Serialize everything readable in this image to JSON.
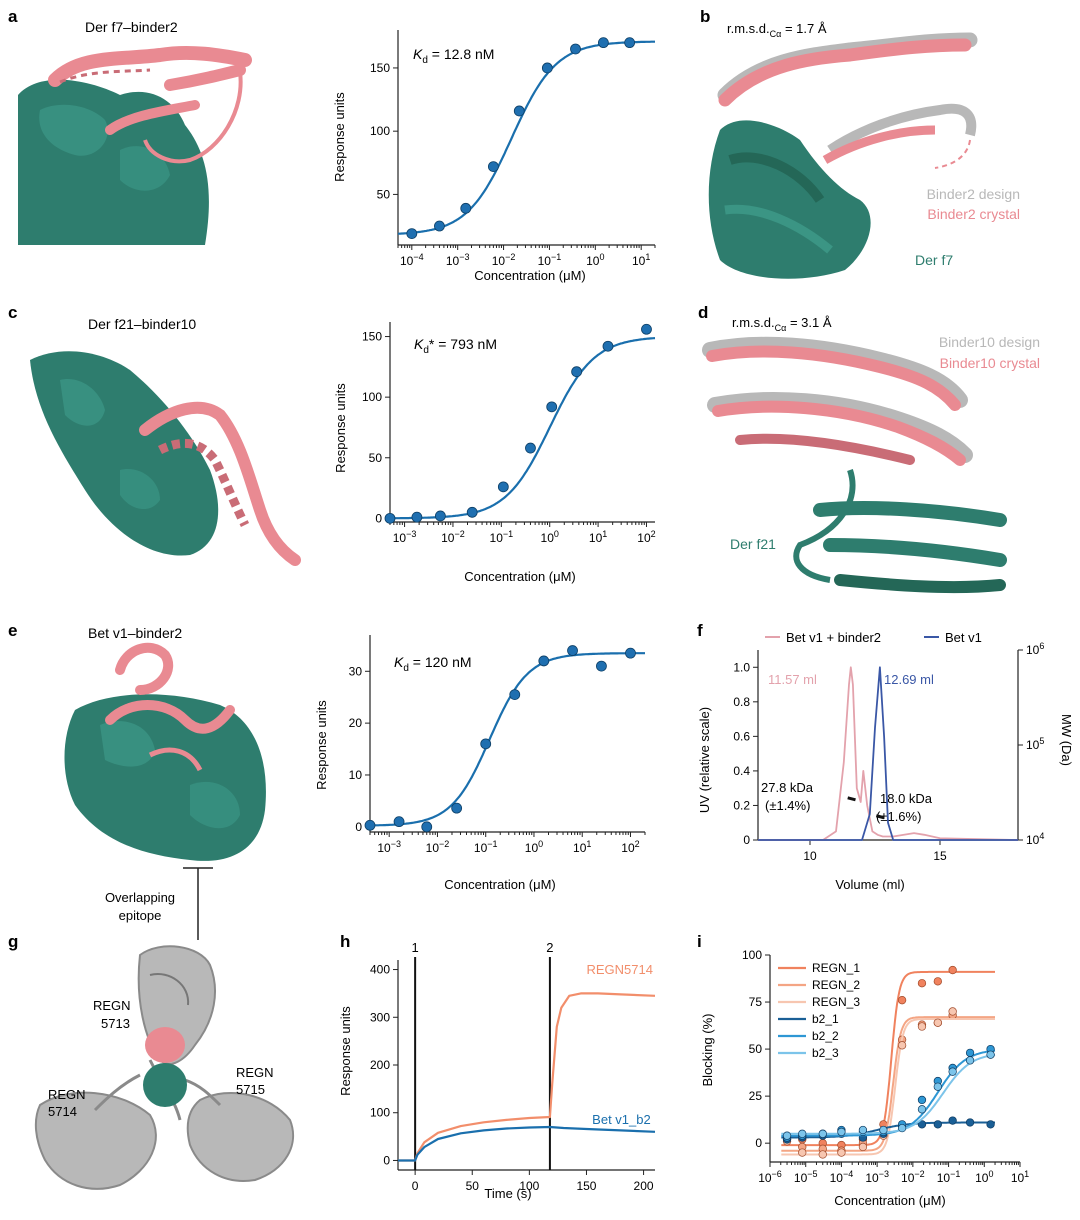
{
  "panels": {
    "a": {
      "letter": "a",
      "title": "Der f7–binder2",
      "kd_symbol": "K",
      "kd_sub": "d",
      "kd_rest": " = 12.8 nM",
      "xlabel": "Concentration (μM)",
      "ylabel": "Response units"
    },
    "b": {
      "letter": "b",
      "rmsd_label": "r.m.s.d.",
      "rmsd_sub": "Cα",
      "rmsd_value": " = 1.7 Å",
      "legend_design": "Binder2 design",
      "legend_crystal": "Binder2 crystal",
      "target": "Der f7"
    },
    "c": {
      "letter": "c",
      "title": "Der f21–binder10",
      "kd_symbol": "K",
      "kd_sub": "d",
      "kd_rest": "* = 793 nM",
      "xlabel": "Concentration (μM)",
      "ylabel": "Response units"
    },
    "d": {
      "letter": "d",
      "rmsd_label": "r.m.s.d.",
      "rmsd_sub": "Cα",
      "rmsd_value": " = 3.1 Å",
      "legend_design": "Binder10 design",
      "legend_crystal": "Binder10 crystal",
      "target": "Der f21"
    },
    "e": {
      "letter": "e",
      "title": "Bet v1–binder2",
      "kd_symbol": "K",
      "kd_sub": "d",
      "kd_rest": " = 120 nM",
      "xlabel": "Concentration (μM)",
      "ylabel": "Response units",
      "epitope_line1": "Overlapping",
      "epitope_line2": "epitope"
    },
    "f": {
      "letter": "f",
      "legend_a": "Bet v1 + binder2",
      "legend_b": "Bet v1",
      "peak_a": "11.57 ml",
      "peak_b": "12.69 ml",
      "mw_a": "27.8 kDa",
      "mw_a_err": "(±1.4%)",
      "mw_b": "18.0 kDa",
      "mw_b_err": "(±1.6%)",
      "xlabel": "Volume (ml)",
      "ylabel": "UV (relative scale)",
      "y2label": "MW (Da)"
    },
    "g": {
      "letter": "g",
      "ab1_line1": "REGN",
      "ab1_line2": "5713",
      "ab2_line1": "REGN",
      "ab2_line2": "5714",
      "ab3_line1": "REGN",
      "ab3_line2": "5715"
    },
    "h": {
      "letter": "h",
      "marker1": "1",
      "marker2": "2",
      "xlabel": "Time (s)",
      "ylabel": "Response units"
    },
    "i": {
      "letter": "i",
      "xlabel": "Concentration (μM)",
      "ylabel": "Blocking (%)"
    }
  },
  "colors": {
    "fit_blue": "#1a6fad",
    "point_blue": "#1f6fb0",
    "teal": "#2e7d6e",
    "pink": "#e98a92",
    "grey": "#b8b8b8",
    "orange": "#f28e6b",
    "navy": "#3a57a6",
    "light_pink": "#e3a2ac"
  },
  "chart_data": [
    {
      "id": "a",
      "type": "scatter",
      "xscale": "log",
      "xlim": [
        5e-05,
        20
      ],
      "ylim": [
        10,
        180
      ],
      "xticks": [
        0.0001,
        0.001,
        0.01,
        0.1,
        1,
        10
      ],
      "xticklabels": [
        "10^-4",
        "10^-3",
        "10^-2",
        "10^-1",
        "10^0",
        "10^1"
      ],
      "yticks": [
        50,
        100,
        150
      ],
      "x": [
        0.0001,
        0.0004,
        0.0015,
        0.006,
        0.022,
        0.09,
        0.37,
        1.5,
        5.6
      ],
      "y": [
        19,
        25,
        39,
        72,
        116,
        150,
        165,
        170,
        170
      ],
      "fit": {
        "bottom": 18,
        "top": 171,
        "ec50": 0.015,
        "hill": 0.9
      },
      "annotation": "Kd = 12.8 nM",
      "xlabel": "Concentration (μM)",
      "ylabel": "Response units"
    },
    {
      "id": "c",
      "type": "scatter",
      "xscale": "log",
      "xlim": [
        0.0005,
        150
      ],
      "ylim": [
        -3,
        162
      ],
      "xticks": [
        0.001,
        0.01,
        0.1,
        1,
        10,
        100
      ],
      "xticklabels": [
        "10^-3",
        "10^-2",
        "10^-1",
        "10^0",
        "10^1",
        "10^2"
      ],
      "yticks": [
        0,
        50,
        100,
        150
      ],
      "x": [
        0.0005,
        0.0018,
        0.0055,
        0.025,
        0.11,
        0.4,
        1.1,
        3.6,
        16,
        100
      ],
      "y": [
        0,
        1,
        2,
        5,
        26,
        58,
        92,
        121,
        142,
        156
      ],
      "fit": {
        "bottom": 0,
        "top": 150,
        "ec50": 1.0,
        "hill": 0.95
      },
      "annotation": "Kd* = 793 nM",
      "xlabel": "Concentration (μM)",
      "ylabel": "Response units"
    },
    {
      "id": "e",
      "type": "scatter",
      "xscale": "log",
      "xlim": [
        0.0004,
        200
      ],
      "ylim": [
        -1,
        37
      ],
      "xticks": [
        0.001,
        0.01,
        0.1,
        1,
        10,
        100
      ],
      "xticklabels": [
        "10^-3",
        "10^-2",
        "10^-1",
        "10^0",
        "10^1",
        "10^2"
      ],
      "yticks": [
        0,
        10,
        20,
        30
      ],
      "x": [
        0.0004,
        0.0016,
        0.006,
        0.025,
        0.1,
        0.4,
        1.6,
        6.3,
        25,
        100
      ],
      "y": [
        0.3,
        1,
        0,
        3.6,
        16,
        25.5,
        32,
        34,
        31,
        33.5
      ],
      "fit": {
        "bottom": 0.2,
        "top": 33.5,
        "ec50": 0.12,
        "hill": 1.1
      },
      "annotation": "Kd = 120 nM",
      "xlabel": "Concentration (μM)",
      "ylabel": "Response units"
    },
    {
      "id": "f",
      "type": "line",
      "xlim": [
        8,
        18
      ],
      "ylim": [
        0,
        1.1
      ],
      "xticks": [
        10,
        15
      ],
      "yticks": [
        0,
        0.2,
        0.4,
        0.6,
        0.8,
        1.0
      ],
      "y2scale": "log",
      "y2ticks": [
        "10^4",
        "10^5",
        "10^6"
      ],
      "series": [
        {
          "name": "Bet v1 + binder2",
          "x": [
            8,
            10.5,
            11.0,
            11.3,
            11.5,
            11.57,
            11.65,
            11.8,
            11.95,
            12.05,
            12.2,
            12.4,
            12.6,
            12.8,
            13.2,
            14.0,
            14.4,
            15.0,
            18
          ],
          "y": [
            0,
            0,
            0.05,
            0.45,
            0.9,
            1.0,
            0.9,
            0.3,
            0.22,
            0.4,
            0.2,
            0.05,
            0.03,
            0.02,
            0.02,
            0.04,
            0.03,
            0.01,
            0
          ]
        },
        {
          "name": "Bet v1",
          "x": [
            8,
            12.0,
            12.3,
            12.5,
            12.69,
            12.85,
            13.0,
            13.2,
            18
          ],
          "y": [
            0,
            0,
            0.15,
            0.65,
            1.0,
            0.6,
            0.1,
            0,
            0
          ]
        }
      ],
      "mw_segments": [
        {
          "x": [
            11.45,
            11.75
          ],
          "mw_kDa": 27.8
        },
        {
          "x": [
            12.55,
            12.85
          ],
          "mw_kDa": 18.0
        }
      ],
      "annotations": [
        "11.57 ml",
        "12.69 ml",
        "27.8 kDa (±1.4%)",
        "18.0 kDa (±1.6%)"
      ],
      "xlabel": "Volume (ml)",
      "ylabel": "UV (relative scale)",
      "y2label": "MW (Da)"
    },
    {
      "id": "h",
      "type": "line",
      "xlim": [
        -15,
        210
      ],
      "ylim": [
        -20,
        420
      ],
      "xticks": [
        0,
        50,
        100,
        150,
        200
      ],
      "yticks": [
        0,
        100,
        200,
        300,
        400
      ],
      "markers_x": [
        0,
        118
      ],
      "series": [
        {
          "name": "REGN5714",
          "x": [
            -15,
            0,
            2,
            8,
            20,
            40,
            60,
            80,
            100,
            118,
            120,
            124,
            128,
            135,
            145,
            160,
            180,
            210
          ],
          "y": [
            0,
            0,
            15,
            38,
            58,
            72,
            80,
            85,
            89,
            91,
            160,
            280,
            320,
            345,
            350,
            350,
            348,
            345
          ]
        },
        {
          "name": "Bet v1_b2",
          "x": [
            -15,
            0,
            2,
            8,
            20,
            40,
            60,
            80,
            100,
            118,
            130,
            150,
            180,
            210
          ],
          "y": [
            0,
            0,
            12,
            28,
            45,
            57,
            63,
            67,
            69,
            70,
            68,
            66,
            63,
            60
          ]
        }
      ],
      "xlabel": "Time (s)",
      "ylabel": "Response units"
    },
    {
      "id": "i",
      "type": "scatter",
      "xscale": "log",
      "xlim": [
        1e-06,
        10
      ],
      "ylim": [
        -10,
        100
      ],
      "xticks": [
        1e-06,
        1e-05,
        0.0001,
        0.001,
        0.01,
        0.1,
        1,
        10
      ],
      "xticklabels": [
        "10^-6",
        "10^-5",
        "10^-4",
        "10^-3",
        "10^-2",
        "10^-1",
        "10^0",
        "10^1"
      ],
      "yticks": [
        0,
        25,
        50,
        75,
        100
      ],
      "series": [
        {
          "name": "REGN_1",
          "x": [
            3e-06,
            8e-06,
            3e-05,
            0.0001,
            0.0004,
            0.0015,
            0.005,
            0.018,
            0.05,
            0.13
          ],
          "y": [
            3,
            2,
            0,
            -1,
            2,
            10,
            76,
            85,
            86,
            92
          ],
          "fit": {
            "bottom": -1,
            "top": 91,
            "ec50": 0.0025,
            "hill": 4
          }
        },
        {
          "name": "REGN_2",
          "x": [
            3e-06,
            8e-06,
            3e-05,
            0.0001,
            0.0004,
            0.0015,
            0.005,
            0.018,
            0.05,
            0.13
          ],
          "y": [
            2,
            -2,
            -3,
            -4,
            0,
            5,
            55,
            63,
            64,
            68
          ],
          "fit": {
            "bottom": -4,
            "top": 67,
            "ec50": 0.0028,
            "hill": 4
          }
        },
        {
          "name": "REGN_3",
          "x": [
            3e-06,
            8e-06,
            3e-05,
            0.0001,
            0.0004,
            0.0015,
            0.005,
            0.018,
            0.05,
            0.13
          ],
          "y": [
            1,
            -5,
            -6,
            -5,
            -2,
            4,
            52,
            62,
            64,
            70
          ],
          "fit": {
            "bottom": -6,
            "top": 66,
            "ec50": 0.0032,
            "hill": 4
          }
        },
        {
          "name": "b2_1",
          "x": [
            3e-06,
            8e-06,
            3e-05,
            0.0001,
            0.0004,
            0.0015,
            0.005,
            0.018,
            0.05,
            0.13,
            0.4,
            1.5
          ],
          "y": [
            2,
            3,
            4,
            5,
            3,
            5,
            9,
            10,
            10,
            12,
            11,
            10
          ],
          "fit": {
            "bottom": 3,
            "top": 11,
            "ec50": 0.001,
            "hill": 1
          }
        },
        {
          "name": "b2_2",
          "x": [
            3e-06,
            8e-06,
            3e-05,
            0.0001,
            0.0004,
            0.0015,
            0.005,
            0.018,
            0.05,
            0.13,
            0.4,
            1.5
          ],
          "y": [
            3,
            4,
            5,
            7,
            6,
            6,
            10,
            23,
            33,
            40,
            48,
            50
          ],
          "fit": {
            "bottom": 4,
            "top": 50,
            "ec50": 0.05,
            "hill": 1.1
          }
        },
        {
          "name": "b2_3",
          "x": [
            3e-06,
            8e-06,
            3e-05,
            0.0001,
            0.0004,
            0.0015,
            0.005,
            0.018,
            0.05,
            0.13,
            0.4,
            1.5
          ],
          "y": [
            4,
            5,
            5,
            6,
            7,
            7,
            8,
            18,
            30,
            38,
            44,
            47
          ],
          "fit": {
            "bottom": 5,
            "top": 48,
            "ec50": 0.07,
            "hill": 1.1
          }
        }
      ],
      "xlabel": "Concentration (μM)",
      "ylabel": "Blocking (%)"
    }
  ]
}
